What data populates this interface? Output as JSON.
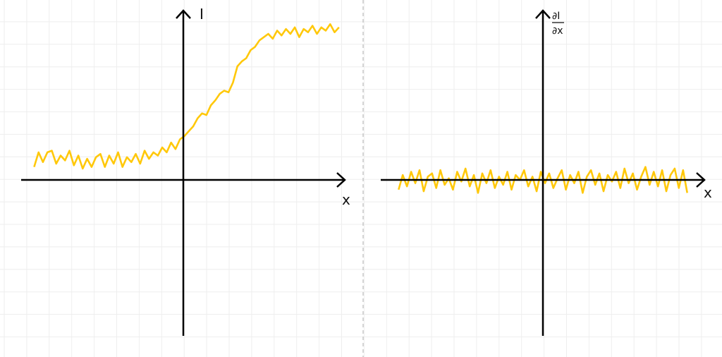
{
  "colors": {
    "curve": "#FFC80A",
    "axis": "#000000",
    "grid": "#EEEEEE",
    "divider": "#BBBBBB"
  },
  "chart_data": [
    {
      "type": "line",
      "panel": "left",
      "xlabel": "x",
      "ylabel": "I",
      "grid": true,
      "xlim": [
        -1.0,
        1.0
      ],
      "ylim": [
        -0.96,
        1.0
      ],
      "x_range": [
        -0.92,
        0.96
      ],
      "values": [
        0.08,
        0.17,
        0.11,
        0.17,
        0.18,
        0.1,
        0.15,
        0.12,
        0.18,
        0.09,
        0.15,
        0.07,
        0.13,
        0.08,
        0.14,
        0.16,
        0.08,
        0.15,
        0.1,
        0.17,
        0.08,
        0.14,
        0.11,
        0.16,
        0.1,
        0.18,
        0.13,
        0.17,
        0.15,
        0.2,
        0.17,
        0.23,
        0.19,
        0.25,
        0.27,
        0.3,
        0.33,
        0.38,
        0.41,
        0.4,
        0.46,
        0.49,
        0.53,
        0.55,
        0.54,
        0.6,
        0.7,
        0.73,
        0.75,
        0.8,
        0.82,
        0.86,
        0.88,
        0.9,
        0.87,
        0.92,
        0.89,
        0.93,
        0.9,
        0.94,
        0.88,
        0.93,
        0.91,
        0.95,
        0.9,
        0.94,
        0.92,
        0.96,
        0.91,
        0.94
      ]
    },
    {
      "type": "line",
      "panel": "right",
      "xlabel": "x",
      "ylabel_numerator": "∂I",
      "ylabel_denominator": "∂x",
      "grid": true,
      "xlim": [
        -1.0,
        1.0
      ],
      "ylim": [
        -0.96,
        1.0
      ],
      "x_range": [
        -0.89,
        0.89
      ],
      "values": [
        -0.06,
        0.03,
        -0.04,
        0.05,
        -0.02,
        0.06,
        -0.07,
        0.02,
        0.04,
        -0.05,
        0.06,
        -0.03,
        0.01,
        -0.06,
        0.05,
        -0.01,
        0.07,
        -0.04,
        0.03,
        -0.08,
        0.04,
        -0.02,
        0.06,
        -0.05,
        0.02,
        -0.03,
        0.05,
        -0.06,
        0.03,
        0.0,
        0.06,
        -0.04,
        0.02,
        -0.07,
        0.05,
        -0.02,
        0.04,
        -0.05,
        0.01,
        0.06,
        -0.06,
        0.03,
        -0.02,
        0.05,
        -0.08,
        0.02,
        0.06,
        -0.03,
        0.04,
        -0.07,
        0.03,
        -0.01,
        0.05,
        -0.05,
        0.07,
        -0.02,
        0.04,
        -0.06,
        0.02,
        0.08,
        -0.03,
        0.05,
        -0.04,
        0.06,
        -0.07,
        0.03,
        0.07,
        -0.05,
        0.06,
        -0.08
      ]
    }
  ]
}
